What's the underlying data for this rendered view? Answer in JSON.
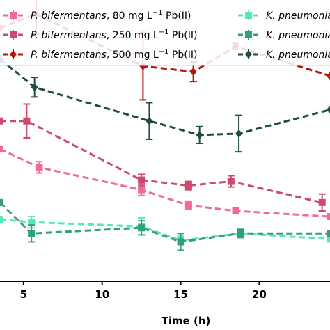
{
  "chart_data": {
    "type": "line",
    "xlabel": "Time (h)",
    "ylabel": "",
    "xlim": [
      3.5,
      24.5
    ],
    "ylim": [
      0,
      100
    ],
    "xticks": [
      5,
      10,
      15,
      20
    ],
    "grid": false,
    "legend": {
      "placement": "top",
      "items": [
        {
          "italic": "P. bifermentans",
          "rest": ", 80 mg L",
          "sup": "−1",
          "tail": " Pb(II)",
          "color": "#f0699a",
          "marker": "square"
        },
        {
          "italic": "K. pneumoniae",
          "rest": "",
          "sup": "",
          "tail": "",
          "color": "#55e8b0",
          "marker": "square"
        },
        {
          "italic": "P. bifermentans",
          "rest": ", 250 mg L",
          "sup": "−1",
          "tail": " Pb(II)",
          "color": "#cc4a6e",
          "marker": "square"
        },
        {
          "italic": "K. pneumoniae",
          "rest": "",
          "sup": "",
          "tail": "",
          "color": "#2fa077",
          "marker": "square"
        },
        {
          "italic": "P. bifermentans",
          "rest": ", 500 mg L",
          "sup": "−1",
          "tail": " Pb(II)",
          "color": "#b2160f",
          "marker": "diamond"
        },
        {
          "italic": "K. pneumoniae",
          "rest": "",
          "sup": "",
          "tail": "",
          "color": "#1f4d40",
          "marker": "diamond"
        }
      ]
    },
    "series": [
      {
        "color": "#f0699a",
        "marker": "square",
        "x": [
          3.5,
          6,
          12.5,
          15.5,
          18.5,
          24.5
        ],
        "y": [
          47,
          40.5,
          32.5,
          27,
          25,
          23
        ],
        "err": [
          0,
          2,
          2,
          1.5,
          1,
          0
        ]
      },
      {
        "color": "#cc4a6e",
        "marker": "square",
        "x": [
          3.5,
          5.2,
          12.5,
          15.5,
          18.2,
          24
        ],
        "y": [
          57,
          57,
          36,
          34,
          35.5,
          28
        ],
        "err": [
          0,
          6,
          2,
          1.5,
          2,
          3
        ]
      },
      {
        "color": "#b2160f",
        "marker": "diamond",
        "x": [
          3.5,
          5.8,
          12.6,
          15.8,
          18.5,
          24.5
        ],
        "y": [
          90,
          95,
          76.5,
          74.5,
          83.5,
          73
        ],
        "err": [
          0,
          7,
          12,
          3.5,
          1,
          0
        ]
      },
      {
        "color": "#55e8b0",
        "marker": "square",
        "x": [
          3.5,
          5.5,
          12.5,
          15,
          18.8,
          24.5
        ],
        "y": [
          22,
          21,
          19.5,
          14.5,
          17,
          15
        ],
        "err": [
          0,
          2,
          3,
          1.5,
          1,
          0
        ]
      },
      {
        "color": "#2fa077",
        "marker": "square",
        "x": [
          3.5,
          5.5,
          12.5,
          15,
          18.8,
          24.5
        ],
        "y": [
          28,
          17,
          19,
          14,
          17,
          17
        ],
        "err": [
          0,
          3,
          2.5,
          3,
          1.5,
          0
        ]
      },
      {
        "color": "#1f4d40",
        "marker": "diamond",
        "x": [
          3.5,
          5.7,
          13,
          16.2,
          18.7,
          24.5
        ],
        "y": [
          79,
          69,
          57,
          52,
          52.5,
          61
        ],
        "err": [
          0,
          3.5,
          6.5,
          3,
          6.5,
          0
        ]
      }
    ]
  }
}
